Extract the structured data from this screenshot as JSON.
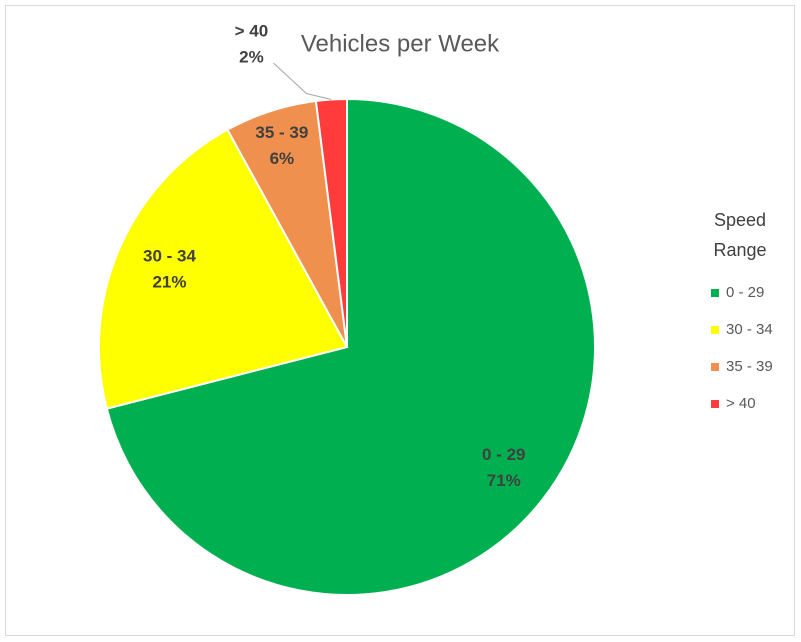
{
  "chart_data": {
    "type": "pie",
    "title": "Vehicles per Week",
    "legend_title": "Speed Range",
    "categories": [
      "0 - 29",
      "30 - 34",
      "35 - 39",
      "> 40"
    ],
    "values": [
      71,
      21,
      6,
      2
    ],
    "value_labels": [
      "71%",
      "21%",
      "6%",
      "2%"
    ],
    "colors": [
      "#00b050",
      "#ffff00",
      "#f0904e",
      "#ff3b3b"
    ],
    "legend": "right"
  }
}
